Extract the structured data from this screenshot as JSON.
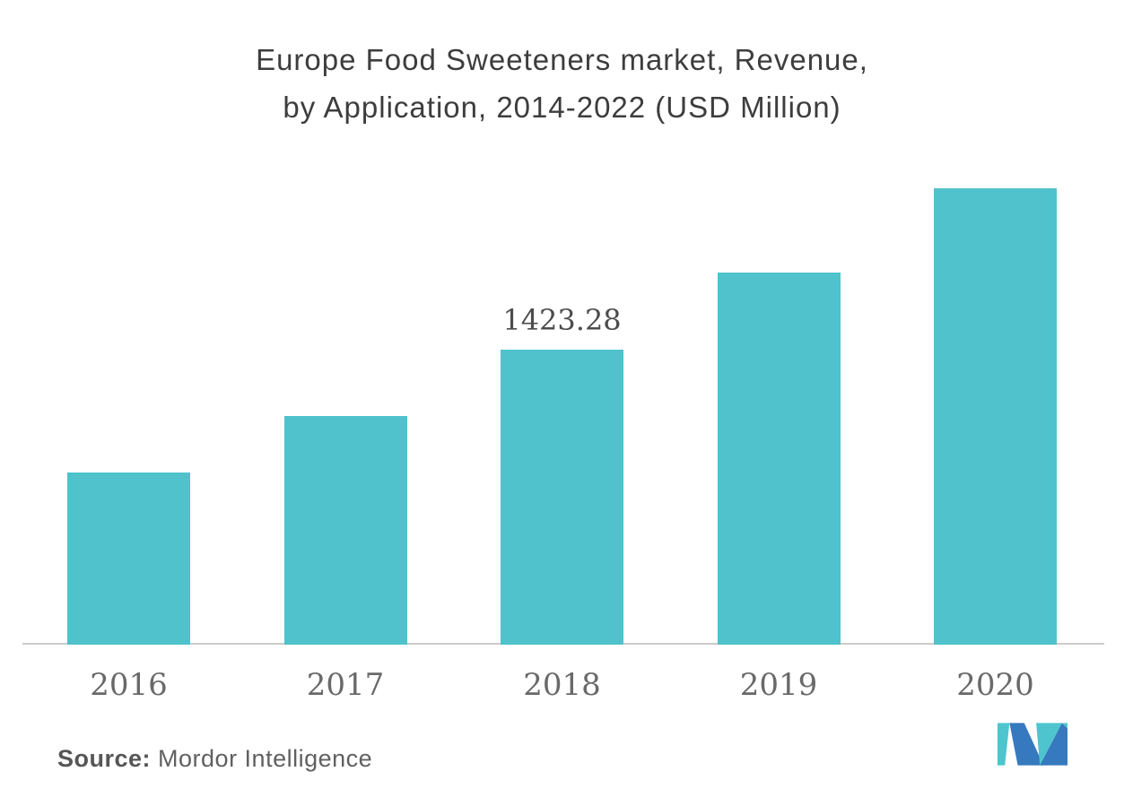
{
  "title": {
    "line1": "Europe Food Sweeteners market, Revenue,",
    "line2": "by Application, 2014-2022 (USD Million)"
  },
  "source": {
    "label": "Source:",
    "text": " Mordor Intelligence"
  },
  "logo": {
    "name": "Mordor Intelligence logo",
    "teal": "#4EC5CE",
    "blue": "#3679BE"
  },
  "chart_data": {
    "type": "bar",
    "title": "Europe Food Sweeteners market, Revenue, by Application, 2014-2022 (USD Million)",
    "categories": [
      "2016",
      "2017",
      "2018",
      "2019",
      "2020"
    ],
    "values": [
      831,
      1103,
      1423.28,
      1795,
      2202
    ],
    "data_labels": [
      "",
      "",
      "1423.28",
      "",
      ""
    ],
    "xlabel": "",
    "ylabel": "",
    "ylim": [
      0,
      2280
    ],
    "bar_color": "#4FC2CC",
    "grid": false,
    "legend": false,
    "y_axis_visible": false,
    "x_axis_line_color": "#CCCBCA"
  }
}
